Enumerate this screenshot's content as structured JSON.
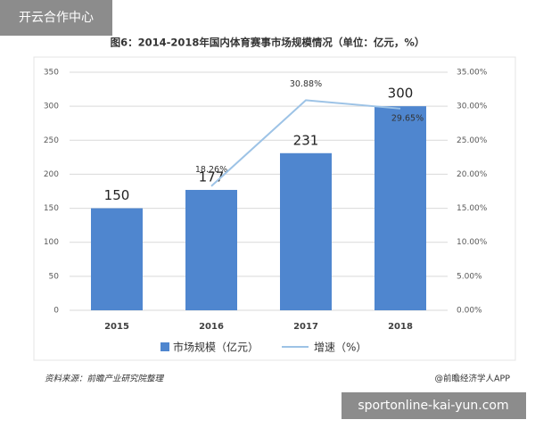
{
  "overlay_label": "开云合作中心",
  "footer_url": "sportonline-kai-yun.com",
  "source": "资料来源：前瞻产业研究院整理",
  "credit": "@前瞻经济学人APP",
  "chart_data": {
    "type": "combo",
    "title": "图6：2014-2018年国内体育赛事市场规模情况（单位：亿元，%）",
    "categories": [
      "2015",
      "2016",
      "2017",
      "2018"
    ],
    "series": [
      {
        "name": "市场规模（亿元）",
        "type": "bar",
        "color": "#4f86cf",
        "values": [
          150,
          177,
          231,
          300
        ]
      },
      {
        "name": "增速（%）",
        "type": "line",
        "axis": "y2",
        "color": "#9dc3e6",
        "values": [
          null,
          18.26,
          30.88,
          29.65
        ],
        "value_labels": [
          null,
          "18.26%",
          "30.88%",
          "29.65%"
        ]
      }
    ],
    "ylim": [
      0,
      350
    ],
    "yticks": [
      0,
      50,
      100,
      150,
      200,
      250,
      300,
      350
    ],
    "y2lim": [
      0,
      35
    ],
    "y2ticks": [
      {
        "value": 0,
        "label": "0.00%"
      },
      {
        "value": 5,
        "label": "5.00%"
      },
      {
        "value": 10,
        "label": "10.00%"
      },
      {
        "value": 15,
        "label": "15.00%"
      },
      {
        "value": 20,
        "label": "20.00%"
      },
      {
        "value": 25,
        "label": "25.00%"
      },
      {
        "value": 30,
        "label": "30.00%"
      },
      {
        "value": 35,
        "label": "35.00%"
      }
    ],
    "grid": true
  }
}
